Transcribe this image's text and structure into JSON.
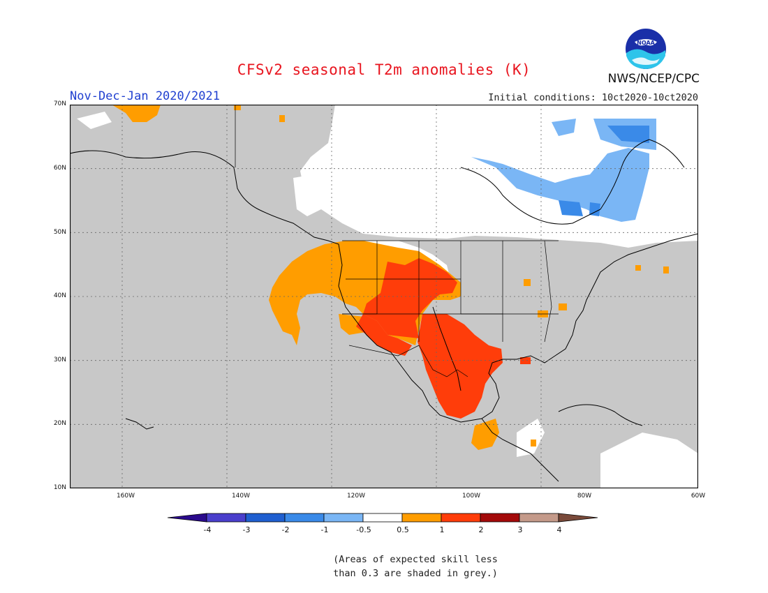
{
  "header": {
    "title": "CFSv2 seasonal T2m anomalies (K)",
    "period": "Nov-Dec-Jan 2020/2021",
    "initial_conditions": "Initial conditions: 10ct2020-10ct2020",
    "agency": "NWS/NCEP/CPC",
    "logo_text": "NOAA"
  },
  "map": {
    "lat_labels": [
      "70N",
      "60N",
      "50N",
      "40N",
      "30N",
      "20N",
      "10N"
    ],
    "lon_labels": [
      "160W",
      "140W",
      "120W",
      "100W",
      "80W",
      "60W"
    ],
    "skill_mask_color": "#c8c8c8"
  },
  "legend": {
    "labels": [
      "-4",
      "-3",
      "-2",
      "-1",
      "-0.5",
      "0.5",
      "1",
      "2",
      "3",
      "4"
    ],
    "colors": [
      "#2a0a8c",
      "#4a3fcc",
      "#1f5fd0",
      "#3a8ae8",
      "#7ab6f5",
      "#ffffff",
      "#ff9d00",
      "#ff3d0a",
      "#a30a0a",
      "#c49a8a",
      "#7a4a3a"
    ]
  },
  "footnote": {
    "line1": "(Areas of expected skill less",
    "line2": "than 0.3 are shaded in grey.)"
  }
}
